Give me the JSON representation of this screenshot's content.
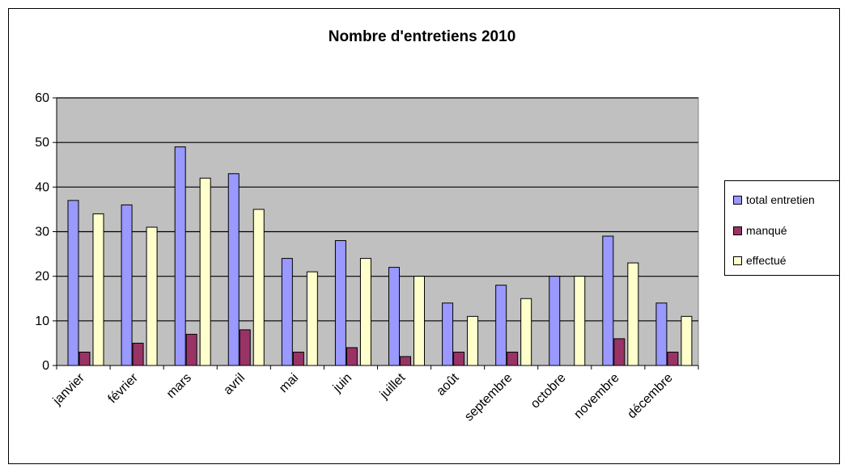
{
  "colors": {
    "plot_bg": "#c0c0c0",
    "total": "#9999ff",
    "manque": "#993366",
    "effectue": "#ffffcc"
  },
  "chart_data": {
    "type": "bar",
    "title": "Nombre d'entretiens 2010",
    "categories": [
      "janvier",
      "février",
      "mars",
      "avril",
      "mai",
      "juin",
      "juillet",
      "août",
      "septembre",
      "octobre",
      "novembre",
      "décembre"
    ],
    "series": [
      {
        "name": "total entretien",
        "color": "#9999ff",
        "values": [
          37,
          36,
          49,
          43,
          24,
          28,
          22,
          14,
          18,
          20,
          29,
          14
        ]
      },
      {
        "name": "manqué",
        "color": "#993366",
        "values": [
          3,
          5,
          7,
          8,
          3,
          4,
          2,
          3,
          3,
          0,
          6,
          3
        ]
      },
      {
        "name": "effectué",
        "color": "#ffffcc",
        "values": [
          34,
          31,
          42,
          35,
          21,
          24,
          20,
          11,
          15,
          20,
          23,
          11
        ]
      }
    ],
    "ylim": [
      0,
      60
    ],
    "yticks": [
      0,
      10,
      20,
      30,
      40,
      50,
      60
    ],
    "grid": true,
    "legend_position": "right"
  }
}
